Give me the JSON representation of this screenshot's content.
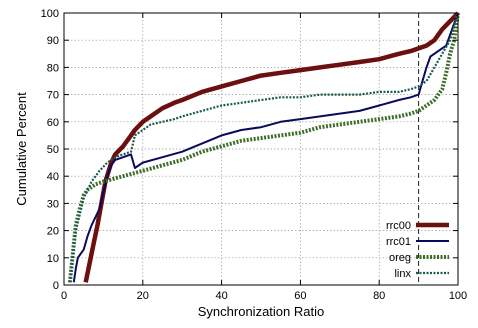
{
  "chart_data": {
    "type": "line",
    "title": "",
    "xlabel": "Synchronization Ratio",
    "ylabel": "Cumulative Percent",
    "xlim": [
      0,
      100
    ],
    "ylim": [
      0,
      100
    ],
    "x_ticks": [
      0,
      20,
      40,
      60,
      80,
      100
    ],
    "y_ticks": [
      0,
      10,
      20,
      30,
      40,
      50,
      60,
      70,
      80,
      90,
      100
    ],
    "grid": true,
    "legend_position": "bottom-right",
    "reference_line_x": 90,
    "series": [
      {
        "name": "rrc00",
        "color": "#6b0f0f",
        "style": "solid-thick",
        "points": [
          [
            5.5,
            1
          ],
          [
            6.5,
            8
          ],
          [
            7.5,
            15
          ],
          [
            8.5,
            22
          ],
          [
            9.5,
            30
          ],
          [
            10.5,
            38
          ],
          [
            12,
            45
          ],
          [
            13,
            48
          ],
          [
            15,
            51
          ],
          [
            17,
            55
          ],
          [
            18,
            57
          ],
          [
            20,
            60
          ],
          [
            22,
            62
          ],
          [
            25,
            65
          ],
          [
            28,
            67
          ],
          [
            30,
            68
          ],
          [
            35,
            71
          ],
          [
            40,
            73
          ],
          [
            45,
            75
          ],
          [
            50,
            77
          ],
          [
            55,
            78
          ],
          [
            60,
            79
          ],
          [
            65,
            80
          ],
          [
            70,
            81
          ],
          [
            75,
            82
          ],
          [
            80,
            83
          ],
          [
            85,
            85
          ],
          [
            88,
            86
          ],
          [
            90,
            87
          ],
          [
            92,
            88
          ],
          [
            94,
            90
          ],
          [
            96,
            94
          ],
          [
            98,
            97
          ],
          [
            100,
            100
          ]
        ]
      },
      {
        "name": "rrc01",
        "color": "#0a0a5c",
        "style": "solid",
        "points": [
          [
            2.5,
            1
          ],
          [
            3,
            6
          ],
          [
            3.5,
            10
          ],
          [
            5,
            13
          ],
          [
            6,
            18
          ],
          [
            7,
            22
          ],
          [
            9,
            28
          ],
          [
            10,
            34
          ],
          [
            11,
            40
          ],
          [
            12,
            44
          ],
          [
            13,
            46
          ],
          [
            15,
            47
          ],
          [
            17,
            48
          ],
          [
            18,
            43
          ],
          [
            20,
            45
          ],
          [
            25,
            47
          ],
          [
            30,
            49
          ],
          [
            35,
            52
          ],
          [
            40,
            55
          ],
          [
            45,
            57
          ],
          [
            50,
            58
          ],
          [
            55,
            60
          ],
          [
            60,
            61
          ],
          [
            65,
            62
          ],
          [
            70,
            63
          ],
          [
            75,
            64
          ],
          [
            80,
            66
          ],
          [
            85,
            68
          ],
          [
            88,
            69
          ],
          [
            90,
            70
          ],
          [
            91,
            75
          ],
          [
            92,
            80
          ],
          [
            93,
            84
          ],
          [
            95,
            86
          ],
          [
            97,
            88
          ],
          [
            98,
            92
          ],
          [
            100,
            100
          ]
        ]
      },
      {
        "name": "oreg",
        "color": "#3f6e2a",
        "style": "dashed-thick",
        "points": [
          [
            1.5,
            1
          ],
          [
            2,
            8
          ],
          [
            2.5,
            15
          ],
          [
            3,
            22
          ],
          [
            4,
            28
          ],
          [
            5,
            33
          ],
          [
            6,
            35
          ],
          [
            8,
            37
          ],
          [
            10,
            38
          ],
          [
            15,
            40
          ],
          [
            20,
            42
          ],
          [
            25,
            44
          ],
          [
            30,
            46
          ],
          [
            35,
            49
          ],
          [
            40,
            51
          ],
          [
            45,
            53
          ],
          [
            50,
            54
          ],
          [
            55,
            55
          ],
          [
            60,
            56
          ],
          [
            65,
            58
          ],
          [
            70,
            59
          ],
          [
            75,
            60
          ],
          [
            80,
            61
          ],
          [
            85,
            62
          ],
          [
            88,
            63
          ],
          [
            90,
            64
          ],
          [
            92,
            66
          ],
          [
            94,
            68
          ],
          [
            96,
            72
          ],
          [
            97,
            78
          ],
          [
            98,
            85
          ],
          [
            99,
            90
          ],
          [
            100,
            100
          ]
        ]
      },
      {
        "name": "linx",
        "color": "#1a5a50",
        "style": "dotted",
        "points": [
          [
            1.5,
            1
          ],
          [
            2,
            8
          ],
          [
            2.5,
            14
          ],
          [
            3,
            20
          ],
          [
            4,
            26
          ],
          [
            5,
            32
          ],
          [
            7,
            38
          ],
          [
            9,
            42
          ],
          [
            11,
            45
          ],
          [
            13,
            47
          ],
          [
            15,
            48
          ],
          [
            17,
            49
          ],
          [
            18,
            55
          ],
          [
            20,
            57
          ],
          [
            22,
            59
          ],
          [
            25,
            60
          ],
          [
            28,
            61
          ],
          [
            30,
            62
          ],
          [
            35,
            64
          ],
          [
            40,
            66
          ],
          [
            45,
            67
          ],
          [
            50,
            68
          ],
          [
            55,
            69
          ],
          [
            60,
            69
          ],
          [
            65,
            70
          ],
          [
            70,
            70
          ],
          [
            75,
            70
          ],
          [
            80,
            71
          ],
          [
            85,
            71
          ],
          [
            88,
            72
          ],
          [
            90,
            73
          ],
          [
            92,
            75
          ],
          [
            94,
            80
          ],
          [
            96,
            85
          ],
          [
            98,
            90
          ],
          [
            100,
            100
          ]
        ]
      }
    ]
  }
}
